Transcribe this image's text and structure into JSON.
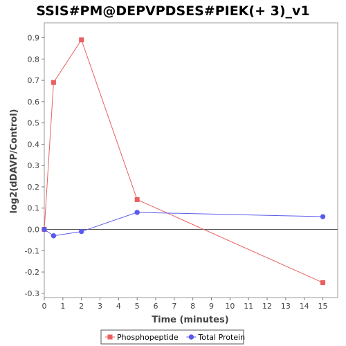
{
  "chart_data": {
    "type": "line",
    "title": "SSIS#PM@DEPVPDSES#PIEK(+ 3)_v1",
    "xlabel": "Time (minutes)",
    "ylabel": "log2(dDAVP/Control)",
    "x_ticks": [
      "0",
      "1",
      "2",
      "3",
      "4",
      "5",
      "6",
      "7",
      "8",
      "9",
      "10",
      "11",
      "12",
      "13",
      "14",
      "15"
    ],
    "y_ticks": [
      "-0.3",
      "-0.2",
      "-0.1",
      "0.0",
      "0.1",
      "0.2",
      "0.3",
      "0.4",
      "0.5",
      "0.6",
      "0.7",
      "0.8",
      "0.9"
    ],
    "xlim": [
      0,
      15.8
    ],
    "ylim": [
      -0.32,
      0.97
    ],
    "grid": false,
    "legend_position": "bottom",
    "series": [
      {
        "name": "Phosphopeptide",
        "color": "#e86060",
        "marker": "square",
        "points": [
          [
            0,
            0.0
          ],
          [
            0.5,
            0.69
          ],
          [
            2,
            0.89
          ],
          [
            5,
            0.14
          ],
          [
            15,
            -0.25
          ]
        ]
      },
      {
        "name": "Total Protein",
        "color": "#5a5aee",
        "marker": "circle",
        "points": [
          [
            0,
            0.0
          ],
          [
            0.5,
            -0.03
          ],
          [
            2,
            -0.01
          ],
          [
            5,
            0.08
          ],
          [
            15,
            0.06
          ]
        ]
      }
    ]
  }
}
